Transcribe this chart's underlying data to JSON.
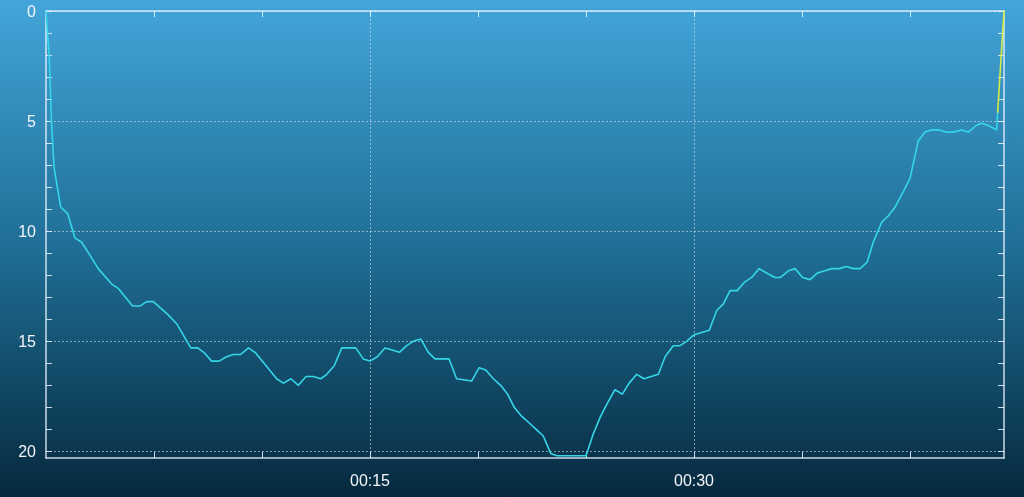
{
  "chart_data": {
    "type": "line",
    "xlim": [
      0,
      0.7392
    ],
    "ylim": [
      20.3,
      0
    ],
    "xticks": [
      {
        "value": 0.0833,
        "label": null
      },
      {
        "value": 0.1667,
        "label": null
      },
      {
        "value": 0.25,
        "label": "00:15"
      },
      {
        "value": 0.3333,
        "label": null
      },
      {
        "value": 0.4167,
        "label": null
      },
      {
        "value": 0.5,
        "label": "00:30"
      },
      {
        "value": 0.5833,
        "label": null
      },
      {
        "value": 0.6667,
        "label": null
      }
    ],
    "yticks": [
      0,
      {
        "value": 1,
        "label": null
      },
      {
        "value": 2,
        "label": null
      },
      {
        "value": 3,
        "label": null
      },
      {
        "value": 4,
        "label": null
      },
      5,
      {
        "value": 6,
        "label": null
      },
      {
        "value": 7,
        "label": null
      },
      {
        "value": 8,
        "label": null
      },
      {
        "value": 9,
        "label": null
      },
      10,
      {
        "value": 11,
        "label": null
      },
      {
        "value": 12,
        "label": null
      },
      {
        "value": 13,
        "label": null
      },
      {
        "value": 14,
        "label": null
      },
      15,
      {
        "value": 16,
        "label": null
      },
      {
        "value": 17,
        "label": null
      },
      {
        "value": 18,
        "label": null
      },
      {
        "value": 19,
        "label": null
      },
      20
    ],
    "grid": true,
    "marker": "none",
    "line_style": "solid",
    "series": [
      {
        "color": "#35d6e8",
        "x": [
          0,
          0.0025,
          0.0043,
          0.0062,
          0.0113,
          0.0167,
          0.0223,
          0.0275,
          0.034,
          0.0403,
          0.0507,
          0.0558,
          0.0668,
          0.0725,
          0.0777,
          0.0828,
          0.0943,
          0.1008,
          0.1117,
          0.117,
          0.1218,
          0.1278,
          0.1335,
          0.1393,
          0.1445,
          0.1502,
          0.1562,
          0.1613,
          0.178,
          0.1832,
          0.189,
          0.1947,
          0.2007,
          0.2063,
          0.212,
          0.2167,
          0.2225,
          0.2282,
          0.2333,
          0.239,
          0.2448,
          0.25,
          0.2557,
          0.2615,
          0.2672,
          0.2727,
          0.2783,
          0.2833,
          0.2892,
          0.295,
          0.3002,
          0.311,
          0.3168,
          0.3285,
          0.3342,
          0.3393,
          0.3452,
          0.3508,
          0.3562,
          0.3613,
          0.367,
          0.3727,
          0.3782,
          0.3837,
          0.3895,
          0.394,
          0.4167,
          0.4223,
          0.428,
          0.4333,
          0.439,
          0.4447,
          0.45,
          0.4558,
          0.4615,
          0.4725,
          0.4777,
          0.484,
          0.4892,
          0.4943,
          0.5002,
          0.506,
          0.5118,
          0.5175,
          0.5227,
          0.5278,
          0.5333,
          0.5393,
          0.5445,
          0.5502,
          0.556,
          0.5625,
          0.5668,
          0.5728,
          0.578,
          0.5838,
          0.5895,
          0.5952,
          0.601,
          0.6062,
          0.6122,
          0.6173,
          0.623,
          0.6282,
          0.6337,
          0.6383,
          0.6448,
          0.65,
          0.6552,
          0.6615,
          0.6667,
          0.673,
          0.6782,
          0.6833,
          0.6893,
          0.6945,
          0.7,
          0.7065,
          0.7117,
          0.7177,
          0.722,
          0.727,
          0.7335,
          0.7343
        ],
        "values": [
          0,
          2.1,
          5.1,
          7.1,
          8.9,
          9.2,
          10.3,
          10.5,
          11.1,
          11.7,
          12.4,
          12.6,
          13.4,
          13.4,
          13.2,
          13.2,
          13.8,
          14.2,
          15.3,
          15.3,
          15.5,
          15.9,
          15.9,
          15.7,
          15.6,
          15.6,
          15.3,
          15.5,
          16.7,
          16.9,
          16.7,
          17.0,
          16.6,
          16.6,
          16.7,
          16.5,
          16.1,
          15.3,
          15.3,
          15.3,
          15.8,
          15.9,
          15.7,
          15.3,
          15.4,
          15.5,
          15.2,
          15.0,
          14.9,
          15.5,
          15.8,
          15.8,
          16.7,
          16.8,
          16.2,
          16.3,
          16.7,
          17.0,
          17.4,
          18.0,
          18.4,
          18.7,
          19.0,
          19.3,
          20.1,
          20.2,
          20.2,
          19.2,
          18.4,
          17.8,
          17.2,
          17.4,
          16.9,
          16.5,
          16.7,
          16.5,
          15.7,
          15.2,
          15.2,
          15.0,
          14.7,
          14.6,
          14.5,
          13.6,
          13.3,
          12.7,
          12.7,
          12.3,
          12.1,
          11.7,
          11.9,
          12.1,
          12.1,
          11.8,
          11.7,
          12.1,
          12.2,
          11.9,
          11.8,
          11.7,
          11.7,
          11.6,
          11.7,
          11.7,
          11.4,
          10.5,
          9.6,
          9.3,
          8.9,
          8.2,
          7.6,
          5.9,
          5.5,
          5.4,
          5.4,
          5.5,
          5.5,
          5.4,
          5.5,
          5.2,
          5.1,
          5.2,
          5.4,
          4.6
        ]
      },
      {
        "color": "#d4ec48",
        "x": [
          0.7343,
          0.7392
        ],
        "values": [
          4.6,
          0
        ]
      }
    ]
  }
}
